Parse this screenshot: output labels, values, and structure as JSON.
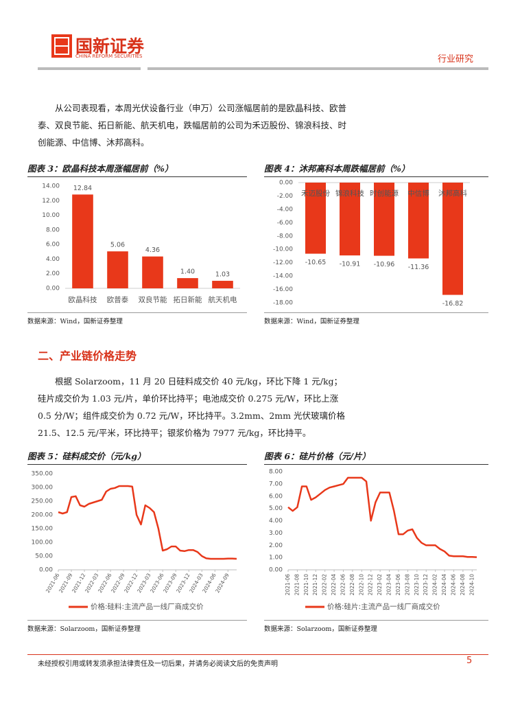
{
  "header": {
    "logo_text": "国新证券",
    "logo_subtext": "CHINA REFORM SECURITIES",
    "section": "行业研究"
  },
  "paragraphs": [
    "从公司表现看，本周光伏设备行业（申万）公司涨幅居前的是欧晶科技、欧普泰、双良节能、拓日新能、航天机电，跌幅居前的公司为禾迈股份、锦浪科技、时创能源、中信博、沐邦高科。",
    "根据 Solarzoom，11 月 20 日硅料成交价 40 元/kg，环比下降 1 元/kg；硅片成交价为 1.03 元/片，单价环比持平；电池成交价 0.275 元/W，环比上涨 0.5 分/W；组件成交价为 0.72 元/W，环比持平。3.2mm、2mm 光伏玻璃价格 21.5、12.5 元/平米，环比持平；银浆价格为 7977 元/kg，环比持平。"
  ],
  "section_heading": "二、产业链价格走势",
  "footer": {
    "disclaimer": "未经授权引用或转发须承担法律责任及一切后果，并请务必阅读文后的免责声明",
    "page": "5"
  },
  "chart_data": [
    {
      "type": "bar",
      "title": "图表 3：欧晶科技本周涨幅居前（%）",
      "source": "数据来源：Wind，国新证券整理",
      "categories": [
        "欧晶科技",
        "欧普泰",
        "双良节能",
        "拓日新能",
        "航天机电"
      ],
      "values": [
        12.84,
        5.06,
        4.36,
        1.4,
        1.03
      ],
      "value_labels": [
        "12.84",
        "5.06",
        "4.36",
        "1.40",
        "1.03"
      ],
      "color": "#e8381a",
      "ylim": [
        0,
        14
      ],
      "yticks": [
        {
          "value": 0,
          "label": "0.00"
        },
        {
          "value": 2,
          "label": "2.00"
        },
        {
          "value": 4,
          "label": "4.00"
        },
        {
          "value": 6,
          "label": "6.00"
        },
        {
          "value": 8,
          "label": "8.00"
        },
        {
          "value": 10,
          "label": "10.00"
        },
        {
          "value": 12,
          "label": "12.00"
        },
        {
          "value": 14,
          "label": "14.00"
        }
      ]
    },
    {
      "type": "bar",
      "title": "图表 4：沐邦高科本周跌幅居前（%）",
      "source": "数据来源：Wind，国新证券整理",
      "categories": [
        "禾迈股份",
        "锦浪科技",
        "时创能源",
        "中信博",
        "沐邦高科"
      ],
      "values": [
        -10.65,
        -10.91,
        -10.96,
        -11.36,
        -16.82
      ],
      "color": "#e8381a",
      "ylim": [
        -18,
        0
      ],
      "yticks": [
        {
          "value": 0,
          "label": "0.00"
        },
        {
          "value": -2,
          "label": "-2.00"
        },
        {
          "value": -4,
          "label": "-4.00"
        },
        {
          "value": -6,
          "label": "-6.00"
        },
        {
          "value": -8,
          "label": "-8.00"
        },
        {
          "value": -10,
          "label": "-10.00"
        },
        {
          "value": -12,
          "label": "-12.00"
        },
        {
          "value": -14,
          "label": "-14.00"
        },
        {
          "value": -16,
          "label": "-16.00"
        },
        {
          "value": -18,
          "label": "-18.00"
        }
      ]
    },
    {
      "type": "line",
      "title": "图表 5：硅料成交价（元/kg）",
      "source": "数据来源：Solarzoom，国新证券整理",
      "x": [
        "2021-06",
        "2021-07",
        "2021-08",
        "2021-09",
        "2021-10",
        "2021-11",
        "2021-12",
        "2022-01",
        "2022-02",
        "2022-03",
        "2022-04",
        "2022-05",
        "2022-06",
        "2022-07",
        "2022-08",
        "2022-09",
        "2022-10",
        "2022-11",
        "2022-12",
        "2023-01",
        "2023-02",
        "2023-03",
        "2023-04",
        "2023-05",
        "2023-06",
        "2023-07",
        "2023-08",
        "2023-09",
        "2023-10",
        "2023-11",
        "2023-12",
        "2024-01",
        "2024-02",
        "2024-03",
        "2024-04",
        "2024-05",
        "2024-06",
        "2024-07",
        "2024-08",
        "2024-09",
        "2024-10",
        "2024-11"
      ],
      "xticks": [
        "2021-06",
        "2021-09",
        "2021-12",
        "2022-03",
        "2022-06",
        "2022-09",
        "2022-12",
        "2023-03",
        "2023-06",
        "2023-09",
        "2023-12",
        "2024-03",
        "2024-06",
        "2024-09"
      ],
      "series": [
        {
          "name": "价格:硅料:主流产品一线厂商成交价",
          "color": "#e8381a",
          "values": [
            210,
            205,
            210,
            265,
            268,
            235,
            230,
            240,
            245,
            250,
            255,
            285,
            295,
            298,
            305,
            305,
            305,
            303,
            200,
            165,
            235,
            225,
            210,
            150,
            70,
            75,
            85,
            85,
            70,
            68,
            72,
            72,
            65,
            50,
            42,
            40,
            40,
            40,
            40,
            41,
            41,
            40
          ]
        }
      ],
      "ylim": [
        0,
        350
      ],
      "yticks": [
        {
          "value": 0,
          "label": "0.00"
        },
        {
          "value": 50,
          "label": "50.00"
        },
        {
          "value": 100,
          "label": "100.00"
        },
        {
          "value": 150,
          "label": "150.00"
        },
        {
          "value": 200,
          "label": "200.00"
        },
        {
          "value": 250,
          "label": "250.00"
        },
        {
          "value": 300,
          "label": "300.00"
        },
        {
          "value": 350,
          "label": "350.00"
        }
      ]
    },
    {
      "type": "line",
      "title": "图表 6：硅片价格（元/片）",
      "source": "数据来源：Solarzoom，国新证券整理",
      "x": [
        "2021-06",
        "2021-07",
        "2021-08",
        "2021-09",
        "2021-10",
        "2021-11",
        "2021-12",
        "2022-01",
        "2022-02",
        "2022-03",
        "2022-04",
        "2022-05",
        "2022-06",
        "2022-07",
        "2022-08",
        "2022-09",
        "2022-10",
        "2022-11",
        "2022-12",
        "2023-01",
        "2023-02",
        "2023-03",
        "2023-04",
        "2023-05",
        "2023-06",
        "2023-07",
        "2023-08",
        "2023-09",
        "2023-10",
        "2023-11",
        "2023-12",
        "2024-01",
        "2024-02",
        "2024-03",
        "2024-04",
        "2024-05",
        "2024-06",
        "2024-07",
        "2024-08",
        "2024-09",
        "2024-10",
        "2024-11"
      ],
      "xticks": [
        "2021-06",
        "2021-08",
        "2021-10",
        "2021-12",
        "2022-02",
        "2022-04",
        "2022-06",
        "2022-08",
        "2022-10",
        "2022-12",
        "2023-02",
        "2023-04",
        "2023-06",
        "2023-08",
        "2023-10",
        "2023-12",
        "2024-02",
        "2024-04",
        "2024-06",
        "2024-08",
        "2024-10"
      ],
      "series": [
        {
          "name": "价格:硅片:主流产品一线厂商成交价",
          "color": "#e8381a",
          "values": [
            5.1,
            4.8,
            5.1,
            6.8,
            6.8,
            5.7,
            5.9,
            6.2,
            6.5,
            6.7,
            6.8,
            6.9,
            7.0,
            7.5,
            7.5,
            7.5,
            7.5,
            7.2,
            4.0,
            5.5,
            6.3,
            6.3,
            6.3,
            4.8,
            2.9,
            2.9,
            3.2,
            3.3,
            2.6,
            2.2,
            2.0,
            2.0,
            2.0,
            1.7,
            1.5,
            1.15,
            1.1,
            1.1,
            1.1,
            1.05,
            1.05,
            1.03
          ]
        }
      ],
      "ylim": [
        0,
        8
      ],
      "yticks": [
        {
          "value": 0,
          "label": "0.00"
        },
        {
          "value": 1,
          "label": "1.00"
        },
        {
          "value": 2,
          "label": "2.00"
        },
        {
          "value": 3,
          "label": "3.00"
        },
        {
          "value": 4,
          "label": "4.00"
        },
        {
          "value": 5,
          "label": "5.00"
        },
        {
          "value": 6,
          "label": "6.00"
        },
        {
          "value": 7,
          "label": "7.00"
        },
        {
          "value": 8,
          "label": "8.00"
        }
      ]
    }
  ]
}
